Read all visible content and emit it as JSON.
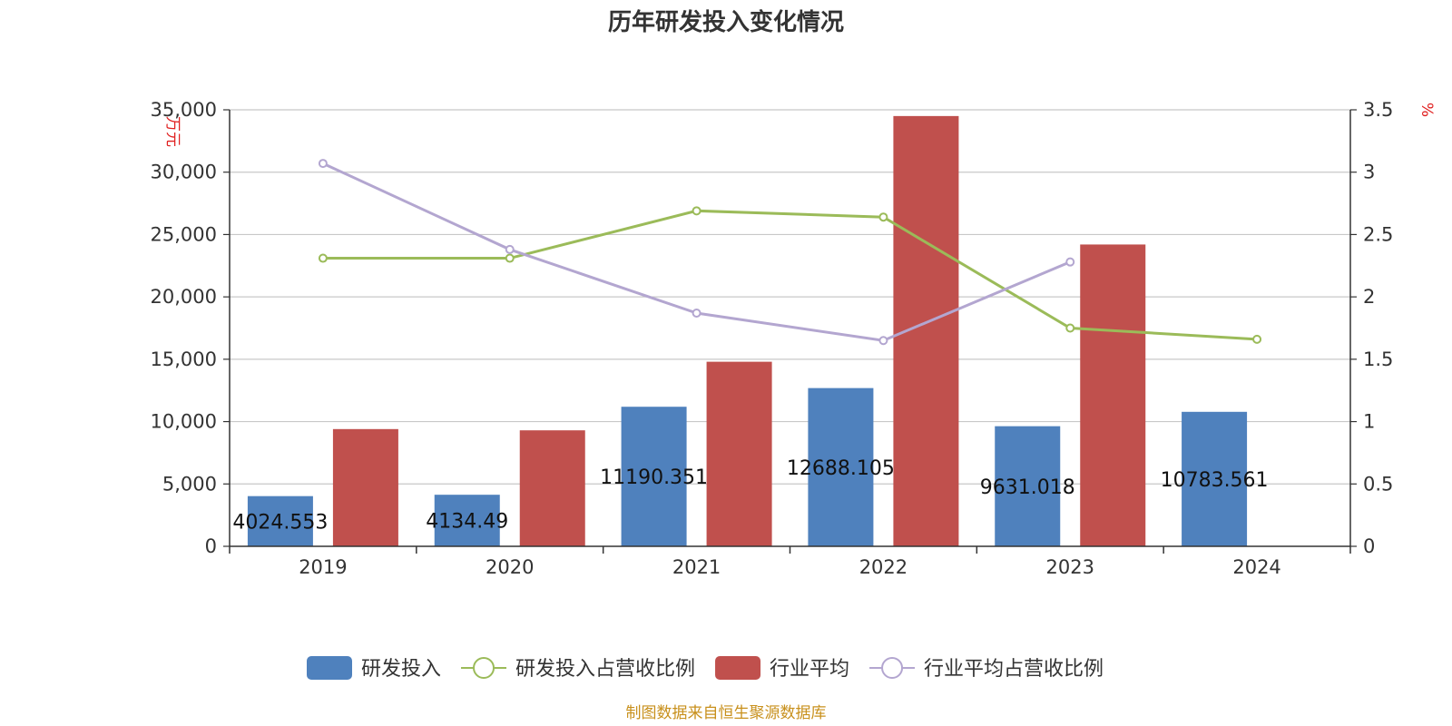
{
  "chart_data": {
    "type": "bar",
    "title": "历年研发投入变化情况",
    "categories": [
      "2019",
      "2020",
      "2021",
      "2022",
      "2023",
      "2024"
    ],
    "y_left": {
      "unit": "万元",
      "ylim": [
        0,
        35000
      ],
      "ticks": [
        "0",
        "5,000",
        "10,000",
        "15,000",
        "20,000",
        "25,000",
        "30,000",
        "35,000"
      ]
    },
    "y_right": {
      "unit": "%",
      "ylim": [
        0,
        3.5
      ],
      "ticks": [
        "0",
        "0.5",
        "1",
        "1.5",
        "2",
        "2.5",
        "3",
        "3.5"
      ]
    },
    "series": [
      {
        "name": "研发投入",
        "type": "bar",
        "axis": "left",
        "color": "#4f81bd",
        "values": [
          4024.553,
          4134.49,
          11190.351,
          12688.105,
          9631.018,
          10783.561
        ],
        "labels": [
          "4024.553",
          "4134.49",
          "11190.351",
          "12688.105",
          "9631.018",
          "10783.561"
        ]
      },
      {
        "name": "研发投入占营收比例",
        "type": "line",
        "axis": "right",
        "color": "#9bbb59",
        "values": [
          2.31,
          2.31,
          2.69,
          2.64,
          1.75,
          1.66
        ]
      },
      {
        "name": "行业平均",
        "type": "bar",
        "axis": "left",
        "color": "#c0504d",
        "values": [
          9400,
          9300,
          14800,
          34500,
          24200,
          null
        ]
      },
      {
        "name": "行业平均占营收比例",
        "type": "line",
        "axis": "right",
        "color": "#b3a6d0",
        "values": [
          3.07,
          2.38,
          1.87,
          1.65,
          2.28,
          null
        ]
      }
    ],
    "grid": true,
    "legend_position": "bottom",
    "source": "制图数据来自恒生聚源数据库"
  }
}
